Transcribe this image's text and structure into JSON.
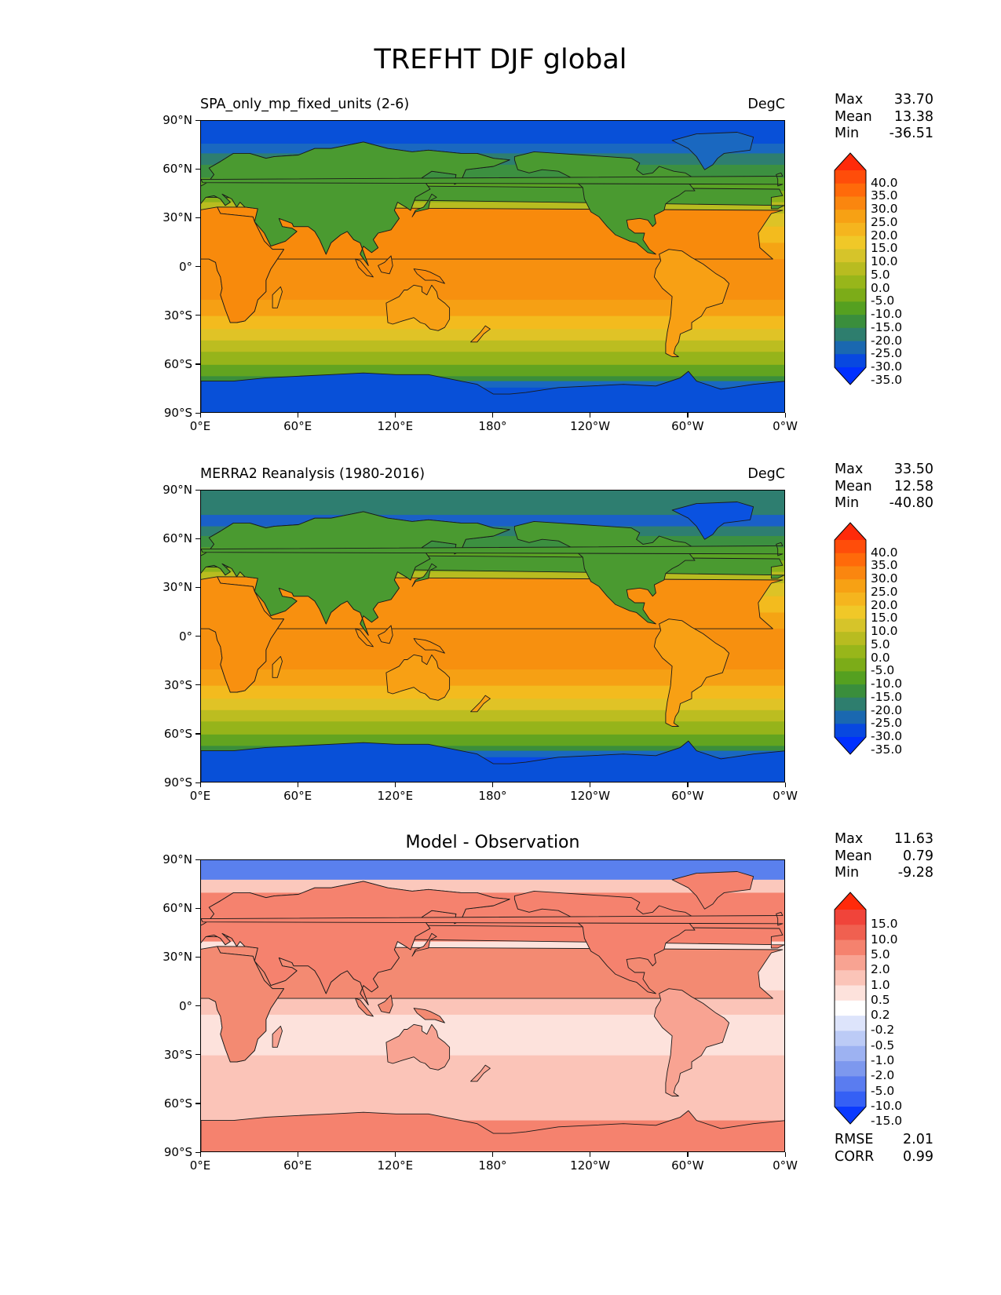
{
  "figure": {
    "title": "TREFHT DJF global"
  },
  "axes": {
    "lat_ticks": [
      "90°N",
      "60°N",
      "30°N",
      "0°",
      "30°S",
      "60°S",
      "90°S"
    ],
    "lon_ticks": [
      "0°E",
      "60°E",
      "120°E",
      "180°",
      "120°W",
      "60°W",
      "0°W"
    ]
  },
  "panels": [
    {
      "left_title": "SPA_only_mp_fixed_units (2-6)",
      "center_title": "",
      "units": "DegC",
      "stats": [
        {
          "label": "Max",
          "value": "33.70"
        },
        {
          "label": "Mean",
          "value": "13.38"
        },
        {
          "label": "Min",
          "value": "-36.51"
        }
      ],
      "colorbar_labels": [
        "40.0",
        "35.0",
        "30.0",
        "25.0",
        "20.0",
        "15.0",
        "10.0",
        "5.0",
        "0.0",
        "-5.0",
        "-10.0",
        "-15.0",
        "-20.0",
        "-25.0",
        "-30.0",
        "-35.0"
      ],
      "colorbar_colors": [
        "#ff2a0a",
        "#ff4d0a",
        "#ff6a0a",
        "#fa860f",
        "#f7a114",
        "#f5b51e",
        "#f0c828",
        "#d6c42a",
        "#b8bc20",
        "#98b61a",
        "#7cac18",
        "#55a020",
        "#3a8e3c",
        "#2e7e6e",
        "#1a68b0",
        "#0848e0",
        "#0030ff"
      ],
      "bands": [
        {
          "lat": 90,
          "color": "#0850d8"
        },
        {
          "lat": 76,
          "color": "#1a68c0"
        },
        {
          "lat": 70,
          "color": "#2e7e70"
        },
        {
          "lat": 63,
          "color": "#3c9040"
        },
        {
          "lat": 55,
          "color": "#5aa424"
        },
        {
          "lat": 47,
          "color": "#8cb31a"
        },
        {
          "lat": 40,
          "color": "#b8bc20"
        },
        {
          "lat": 33,
          "color": "#ddc326"
        },
        {
          "lat": 25,
          "color": "#f3bb1e"
        },
        {
          "lat": 15,
          "color": "#f5a414"
        },
        {
          "lat": 5,
          "color": "#f7900f"
        },
        {
          "lat": -20,
          "color": "#f6a014"
        },
        {
          "lat": -30,
          "color": "#f3bb1e"
        },
        {
          "lat": -38,
          "color": "#e0c326"
        },
        {
          "lat": -45,
          "color": "#bcbd20"
        },
        {
          "lat": -52,
          "color": "#96b41a"
        },
        {
          "lat": -60,
          "color": "#62a420"
        },
        {
          "lat": -67,
          "color": "#3a8e3c"
        },
        {
          "lat": -70,
          "color": "#1a68c0"
        },
        {
          "lat": -74,
          "color": "#0850d8"
        }
      ]
    },
    {
      "left_title": "MERRA2 Reanalysis (1980-2016)",
      "center_title": "",
      "units": "DegC",
      "stats": [
        {
          "label": "Max",
          "value": "33.50"
        },
        {
          "label": "Mean",
          "value": "12.58"
        },
        {
          "label": "Min",
          "value": "-40.80"
        }
      ],
      "colorbar_labels": [
        "40.0",
        "35.0",
        "30.0",
        "25.0",
        "20.0",
        "15.0",
        "10.0",
        "5.0",
        "0.0",
        "-5.0",
        "-10.0",
        "-15.0",
        "-20.0",
        "-25.0",
        "-30.0",
        "-35.0"
      ],
      "colorbar_colors": [
        "#ff2a0a",
        "#ff4d0a",
        "#ff6a0a",
        "#fa860f",
        "#f7a114",
        "#f5b51e",
        "#f0c828",
        "#d6c42a",
        "#b8bc20",
        "#98b61a",
        "#7cac18",
        "#55a020",
        "#3a8e3c",
        "#2e7e6e",
        "#1a68b0",
        "#0848e0",
        "#0030ff"
      ],
      "bands": [
        {
          "lat": 90,
          "color": "#2e7e70"
        },
        {
          "lat": 75,
          "color": "#1a60c8"
        },
        {
          "lat": 68,
          "color": "#2e7e70"
        },
        {
          "lat": 62,
          "color": "#3c9040"
        },
        {
          "lat": 55,
          "color": "#5aa424"
        },
        {
          "lat": 47,
          "color": "#8cb31a"
        },
        {
          "lat": 40,
          "color": "#b8bc20"
        },
        {
          "lat": 33,
          "color": "#ddc326"
        },
        {
          "lat": 25,
          "color": "#f3bb1e"
        },
        {
          "lat": 15,
          "color": "#f5a414"
        },
        {
          "lat": 5,
          "color": "#f7900f"
        },
        {
          "lat": -20,
          "color": "#f6a014"
        },
        {
          "lat": -30,
          "color": "#f3bb1e"
        },
        {
          "lat": -38,
          "color": "#e0c326"
        },
        {
          "lat": -45,
          "color": "#bcbd20"
        },
        {
          "lat": -52,
          "color": "#96b41a"
        },
        {
          "lat": -60,
          "color": "#62a420"
        },
        {
          "lat": -67,
          "color": "#3a8e3c"
        },
        {
          "lat": -70,
          "color": "#1a68c0"
        },
        {
          "lat": -74,
          "color": "#0848e8"
        }
      ]
    },
    {
      "left_title": "",
      "center_title": "Model - Observation",
      "units": "",
      "stats": [
        {
          "label": "Max",
          "value": "11.63"
        },
        {
          "label": "Mean",
          "value": "0.79"
        },
        {
          "label": "Min",
          "value": "-9.28"
        }
      ],
      "extra_stats": [
        {
          "label": "RMSE",
          "value": "2.01"
        },
        {
          "label": "CORR",
          "value": "0.99"
        }
      ],
      "colorbar_labels": [
        "15.0",
        "10.0",
        "5.0",
        "2.0",
        "1.0",
        "0.5",
        "0.2",
        "-0.2",
        "-0.5",
        "-1.0",
        "-2.0",
        "-5.0",
        "-10.0",
        "-15.0"
      ],
      "colorbar_colors": [
        "#ff2a0a",
        "#f0443a",
        "#f06050",
        "#f5826e",
        "#f8a392",
        "#fbc4b8",
        "#fde2dc",
        "#ffffff",
        "#dde4fb",
        "#bccbf6",
        "#9db2f2",
        "#7d98ee",
        "#5a7cf0",
        "#3560f5",
        "#0a3aff"
      ],
      "bands": [
        {
          "lat": 90,
          "color": "#5a80ee"
        },
        {
          "lat": 78,
          "color": "#fbc8bc"
        },
        {
          "lat": 70,
          "color": "#f5826e"
        },
        {
          "lat": 40,
          "color": "#fde2dc"
        },
        {
          "lat": 10,
          "color": "#fbc4b8"
        },
        {
          "lat": -5,
          "color": "#fde2dc"
        },
        {
          "lat": -30,
          "color": "#fbc4b8"
        },
        {
          "lat": -70,
          "color": "#f5826e"
        }
      ]
    }
  ]
}
